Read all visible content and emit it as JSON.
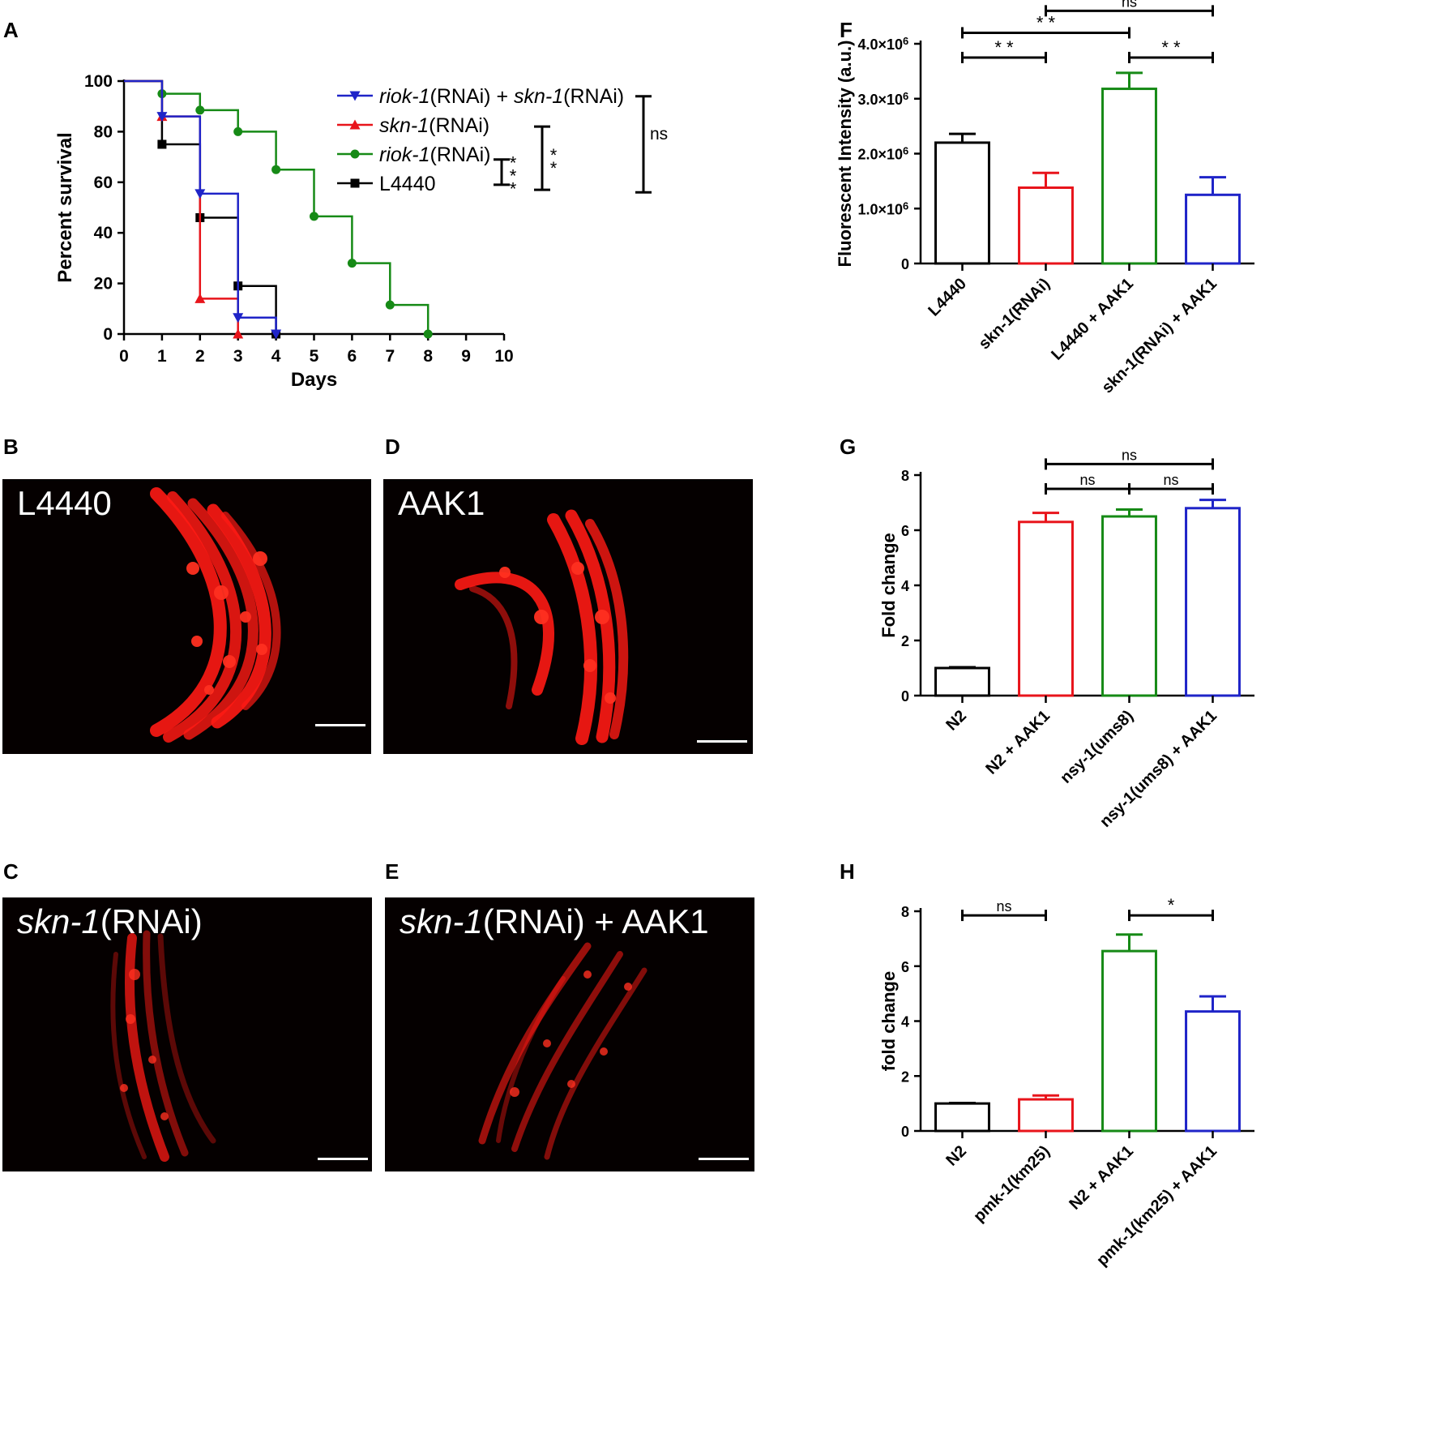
{
  "panels": {
    "A": "A",
    "B": "B",
    "C": "C",
    "D": "D",
    "E": "E",
    "F": "F",
    "G": "G",
    "H": "H"
  },
  "images": {
    "B": {
      "prefix": "",
      "italic": "",
      "label": "L4440"
    },
    "D": {
      "prefix": "",
      "italic": "",
      "label": "AAK1"
    },
    "C": {
      "prefix": "",
      "italic": "skn-1",
      "label": "(RNAi)"
    },
    "E": {
      "prefix": "",
      "italic": "skn-1",
      "label": "(RNAi) + AAK1"
    }
  },
  "colors": {
    "black": "#000000",
    "blue": "#1f24c8",
    "red": "#e8141b",
    "green": "#168a16",
    "image_bg": "#050000",
    "worm": "#ff1a14"
  },
  "chart_data": [
    {
      "id": "A",
      "type": "line",
      "xlabel": "Days",
      "ylabel": "Percent survival",
      "xlim": [
        0,
        10
      ],
      "ylim": [
        0,
        100
      ],
      "xticks": [
        0,
        1,
        2,
        3,
        4,
        5,
        6,
        7,
        8,
        9,
        10
      ],
      "yticks": [
        0,
        20,
        40,
        60,
        80,
        100
      ],
      "series": [
        {
          "name_italic": "riok-1",
          "name_rest": "(RNAi) + ",
          "name_italic2": "skn-1",
          "name_rest2": "(RNAi)",
          "color": "#1f24c8",
          "marker": "triangle-down",
          "steps": [
            [
              0,
              100
            ],
            [
              1,
              86
            ],
            [
              2,
              55.5
            ],
            [
              3,
              6.5
            ],
            [
              4,
              0
            ]
          ]
        },
        {
          "name_italic": "skn-1",
          "name_rest": "(RNAi)",
          "name_italic2": "",
          "name_rest2": "",
          "color": "#e8141b",
          "marker": "triangle-up",
          "steps": [
            [
              0,
              100
            ],
            [
              1,
              86
            ],
            [
              2,
              14
            ],
            [
              3,
              0
            ]
          ]
        },
        {
          "name_italic": "riok-1",
          "name_rest": "(RNAi)",
          "name_italic2": "",
          "name_rest2": "",
          "color": "#168a16",
          "marker": "circle",
          "steps": [
            [
              0,
              100
            ],
            [
              1,
              95
            ],
            [
              2,
              88.5
            ],
            [
              3,
              80
            ],
            [
              4,
              65
            ],
            [
              5,
              46.5
            ],
            [
              6,
              28
            ],
            [
              7,
              11.5
            ],
            [
              8,
              0
            ]
          ]
        },
        {
          "name_italic": "",
          "name_rest": "L4440",
          "name_italic2": "",
          "name_rest2": "",
          "color": "#000000",
          "marker": "square",
          "steps": [
            [
              0,
              100
            ],
            [
              1,
              75
            ],
            [
              2,
              46
            ],
            [
              3,
              19
            ],
            [
              4,
              0
            ]
          ]
        }
      ],
      "annotations": [
        {
          "text": "* * *",
          "span": [
            59,
            69
          ]
        },
        {
          "text": "* *",
          "span": [
            57,
            82
          ]
        },
        {
          "text": "ns",
          "span": [
            56,
            94
          ]
        }
      ]
    },
    {
      "id": "F",
      "type": "bar",
      "ylabel": "Fluorescent Intensity (a.u.)",
      "ylim": [
        0,
        4.0
      ],
      "yticks": [
        0,
        1.0,
        2.0,
        3.0,
        4.0
      ],
      "ytick_labels": [
        "0",
        "1.0×10",
        "2.0×10",
        "3.0×10",
        "4.0×10"
      ],
      "ytick_exp": "6",
      "categories": [
        "L4440",
        "skn-1(RNAi)",
        "L4440 + AAK1",
        "skn-1(RNAi) + AAK1"
      ],
      "values": [
        2.2,
        1.38,
        3.18,
        1.25
      ],
      "errors": [
        0.16,
        0.27,
        0.29,
        0.32
      ],
      "colors": [
        "#000000",
        "#e8141b",
        "#168a16",
        "#1f24c8"
      ],
      "significance": [
        {
          "from": 0,
          "to": 1,
          "level": 3.75,
          "text": "* *"
        },
        {
          "from": 0,
          "to": 2,
          "level": 4.2,
          "text": "* *"
        },
        {
          "from": 2,
          "to": 3,
          "level": 3.75,
          "text": "* *"
        },
        {
          "from": 1,
          "to": 3,
          "level": 4.6,
          "text": "ns"
        }
      ]
    },
    {
      "id": "G",
      "type": "bar",
      "ylabel": "Fold change",
      "ylim": [
        0,
        8
      ],
      "yticks": [
        0,
        2,
        4,
        6,
        8
      ],
      "ytick_labels": [
        "0",
        "2",
        "4",
        "6",
        "8"
      ],
      "ytick_exp": "",
      "categories": [
        "N2",
        "N2 + AAK1",
        "nsy-1(ums8)",
        "nsy-1(ums8) + AAK1"
      ],
      "values": [
        1.0,
        6.3,
        6.5,
        6.8
      ],
      "errors": [
        0.03,
        0.33,
        0.25,
        0.3
      ],
      "colors": [
        "#000000",
        "#e8141b",
        "#168a16",
        "#1f24c8"
      ],
      "significance": [
        {
          "from": 1,
          "to": 2,
          "level": 7.5,
          "text": "ns"
        },
        {
          "from": 2,
          "to": 3,
          "level": 7.5,
          "text": "ns"
        },
        {
          "from": 1,
          "to": 3,
          "level": 8.4,
          "text": "ns"
        }
      ]
    },
    {
      "id": "H",
      "type": "bar",
      "ylabel": "fold change",
      "ylim": [
        0,
        8
      ],
      "yticks": [
        0,
        2,
        4,
        6,
        8
      ],
      "ytick_labels": [
        "0",
        "2",
        "4",
        "6",
        "8"
      ],
      "ytick_exp": "",
      "categories": [
        "N2",
        "pmk-1(km25)",
        "N2 + AAK1",
        "pmk-1(km25) + AAK1"
      ],
      "values": [
        1.0,
        1.15,
        6.55,
        4.35
      ],
      "errors": [
        0.02,
        0.14,
        0.6,
        0.55
      ],
      "colors": [
        "#000000",
        "#e8141b",
        "#168a16",
        "#1f24c8"
      ],
      "significance": [
        {
          "from": 0,
          "to": 1,
          "level": 7.85,
          "text": "ns"
        },
        {
          "from": 2,
          "to": 3,
          "level": 7.85,
          "text": "*"
        }
      ]
    }
  ]
}
